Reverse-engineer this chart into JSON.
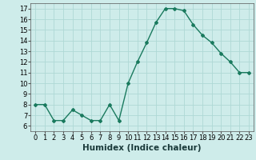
{
  "x": [
    0,
    1,
    2,
    3,
    4,
    5,
    6,
    7,
    8,
    9,
    10,
    11,
    12,
    13,
    14,
    15,
    16,
    17,
    18,
    19,
    20,
    21,
    22,
    23
  ],
  "y": [
    8,
    8,
    6.5,
    6.5,
    7.5,
    7,
    6.5,
    6.5,
    8,
    6.5,
    10,
    12,
    13.8,
    15.7,
    17,
    17,
    16.8,
    15.5,
    14.5,
    13.8,
    12.8,
    12,
    11,
    11
  ],
  "line_color": "#1a7a5e",
  "marker": "D",
  "marker_size": 2,
  "bg_color": "#ceecea",
  "grid_color": "#aed8d5",
  "xlabel": "Humidex (Indice chaleur)",
  "xlim": [
    -0.5,
    23.5
  ],
  "ylim": [
    5.5,
    17.5
  ],
  "yticks": [
    6,
    7,
    8,
    9,
    10,
    11,
    12,
    13,
    14,
    15,
    16,
    17
  ],
  "xticks": [
    0,
    1,
    2,
    3,
    4,
    5,
    6,
    7,
    8,
    9,
    10,
    11,
    12,
    13,
    14,
    15,
    16,
    17,
    18,
    19,
    20,
    21,
    22,
    23
  ],
  "tick_label_fontsize": 6,
  "xlabel_fontsize": 7.5,
  "linewidth": 1.0
}
